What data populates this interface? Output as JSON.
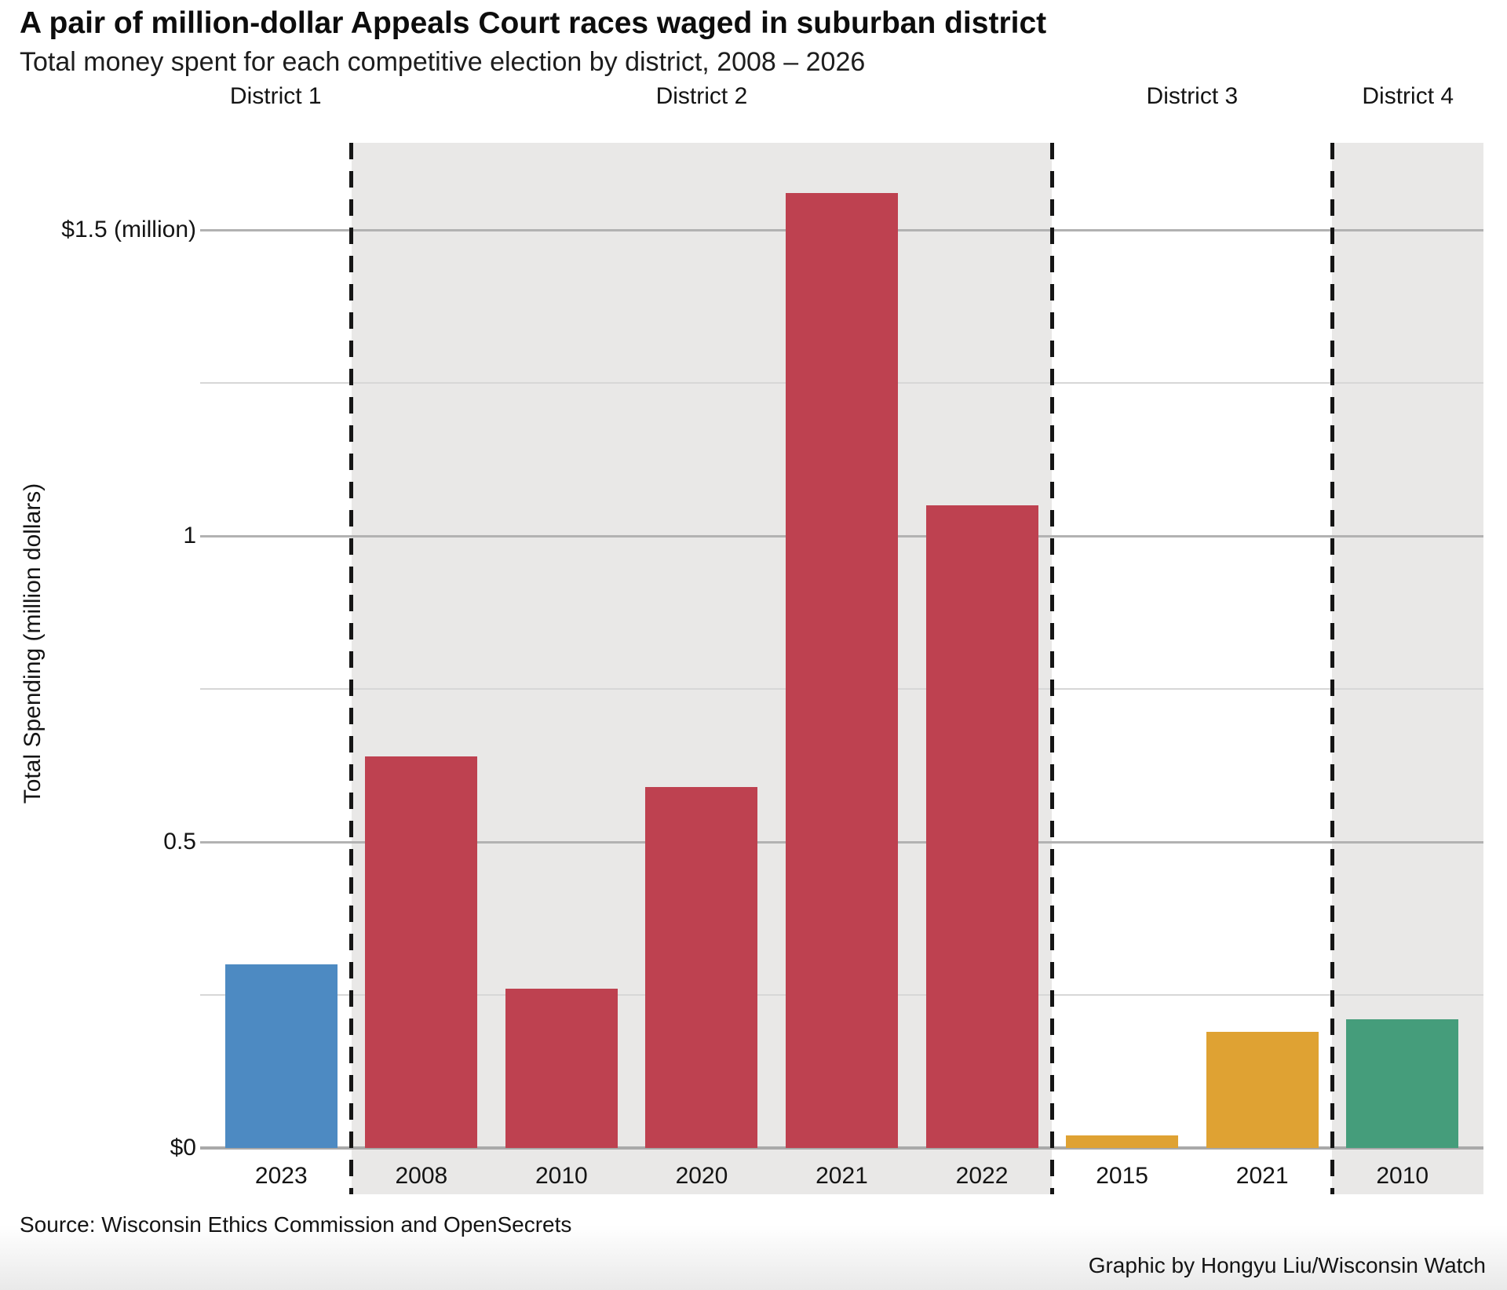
{
  "header": {
    "title": "A pair of million-dollar Appeals Court races waged in suburban district",
    "subtitle": "Total money spent for each competitive election by district, 2008 – 2026"
  },
  "footer": {
    "source": "Source: Wisconsin Ethics Commission and OpenSecrets",
    "credit": "Graphic by Hongyu Liu/Wisconsin Watch"
  },
  "colors": {
    "district1_bar": "#4D8AC2",
    "district2_bar": "#BE4150",
    "district3_bar": "#DFA233",
    "district4_bar": "#459D7B",
    "shaded_region": "#E9E8E7",
    "gridline_major": "#b2b2b2",
    "gridline_minor": "#d7d7d7",
    "baseline": "#a9a9a9",
    "separator": "#151515"
  },
  "chart_data": {
    "type": "bar",
    "title": "A pair of million-dollar Appeals Court races waged in suburban district",
    "subtitle": "Total money spent for each competitive election by district, 2008 – 2026",
    "xlabel": "",
    "ylabel": "Total Spending (million dollars)",
    "ylim": [
      0,
      1.64
    ],
    "ygrid_step": 0.25,
    "grid": "on",
    "legend_position": "none",
    "unit": "million dollars",
    "categories": [
      "2023",
      "2008",
      "2010",
      "2020",
      "2021",
      "2022",
      "2015",
      "2021",
      "2010"
    ],
    "values": [
      0.3,
      0.64,
      0.26,
      0.59,
      1.56,
      1.05,
      0.02,
      0.19,
      0.21
    ],
    "yticks": [
      {
        "value": 1.5,
        "label": "$1.5 (million)"
      },
      {
        "value": 1.0,
        "label": "1"
      },
      {
        "value": 0.5,
        "label": "0.5"
      },
      {
        "value": 0.0,
        "label": "$0"
      }
    ],
    "districts": [
      {
        "name": "District 1",
        "shaded": false,
        "color": "#4D8AC2",
        "bars": [
          {
            "year": "2023",
            "value": 0.3
          }
        ]
      },
      {
        "name": "District 2",
        "shaded": true,
        "color": "#BE4150",
        "bars": [
          {
            "year": "2008",
            "value": 0.64
          },
          {
            "year": "2010",
            "value": 0.26
          },
          {
            "year": "2020",
            "value": 0.59
          },
          {
            "year": "2021",
            "value": 1.56
          },
          {
            "year": "2022",
            "value": 1.05
          }
        ]
      },
      {
        "name": "District 3",
        "shaded": false,
        "color": "#DFA233",
        "bars": [
          {
            "year": "2015",
            "value": 0.02
          },
          {
            "year": "2021",
            "value": 0.19
          }
        ]
      },
      {
        "name": "District 4",
        "shaded": true,
        "color": "#459D7B",
        "bars": [
          {
            "year": "2010",
            "value": 0.21
          }
        ]
      }
    ]
  }
}
